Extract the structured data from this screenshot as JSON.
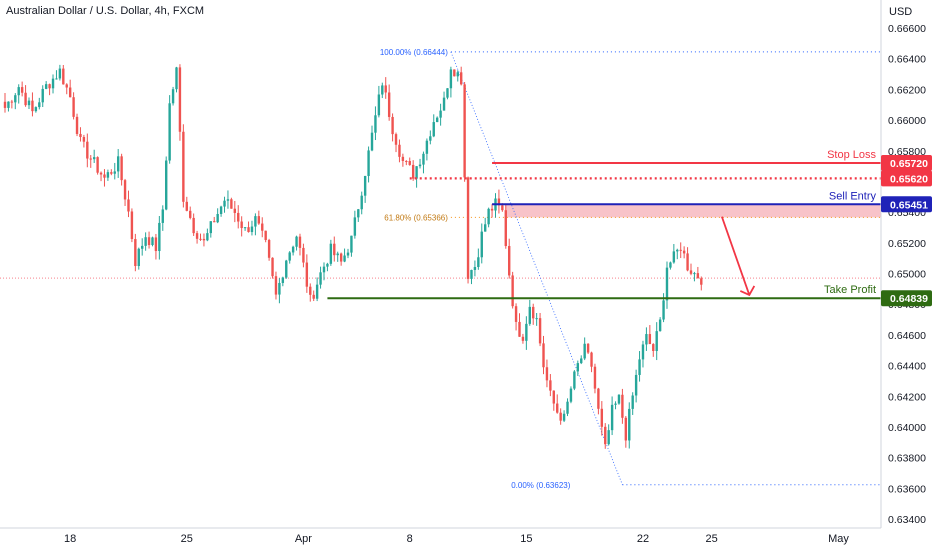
{
  "chart_data": {
    "type": "candlestick",
    "title": "Australian Dollar / U.S. Dollar, 4h, FXCM",
    "currency": "USD",
    "ylim": [
      0.634,
      0.667
    ],
    "y_ticks": [
      "0.66600",
      "0.66400",
      "0.66200",
      "0.66000",
      "0.65800",
      "0.65600",
      "0.65400",
      "0.65200",
      "0.65000",
      "0.64800",
      "0.64600",
      "0.64400",
      "0.64200",
      "0.64000",
      "0.63800",
      "0.63600",
      "0.63400"
    ],
    "x_ticks": [
      {
        "label": "18",
        "candle": 19
      },
      {
        "label": "25",
        "candle": 53
      },
      {
        "label": "Apr",
        "candle": 87
      },
      {
        "label": "8",
        "candle": 118
      },
      {
        "label": "15",
        "candle": 152
      },
      {
        "label": "22",
        "candle": 186
      },
      {
        "label": "25",
        "candle": 206
      },
      {
        "label": "May",
        "candle": 243
      }
    ],
    "current_price_line": 0.6497,
    "fibonacci": {
      "high": {
        "label": "100.00% (0.66444)",
        "value": 0.66444,
        "candle": 130
      },
      "mid": {
        "label": "61.80% (0.65366)",
        "value": 0.65366
      },
      "low": {
        "label": "0.00% (0.63623)",
        "value": 0.63623,
        "candle": 180
      },
      "end_candle": 250
    },
    "levels": [
      {
        "name": "Stop Loss",
        "value": 0.6572,
        "tag": "0.65720",
        "color": "#f23645",
        "style": "solid",
        "from_candle": 142
      },
      {
        "name": "",
        "value": 0.6562,
        "tag": "0.65620",
        "color": "#f23645",
        "style": "dotted",
        "from_candle": 118
      },
      {
        "name": "Sell Entry",
        "value": 0.65451,
        "tag": "0.65451",
        "color": "#1f22b8",
        "style": "solid",
        "from_candle": 142
      },
      {
        "name": "Take Profit",
        "value": 0.64839,
        "tag": "0.64839",
        "color": "#2e6b12",
        "style": "solid",
        "from_candle": 94
      }
    ],
    "zone": {
      "from": 0.65366,
      "to": 0.65451,
      "color": "#f7b9c0",
      "from_candle": 146
    },
    "arrow": {
      "from_candle": 209,
      "from_value": 0.6537,
      "to_candle": 217,
      "to_value": 0.6486,
      "color": "#f23645"
    },
    "anchors": [
      [
        0,
        0.6608
      ],
      [
        4,
        0.6622
      ],
      [
        8,
        0.6605
      ],
      [
        12,
        0.6622
      ],
      [
        16,
        0.6632
      ],
      [
        19,
        0.6615
      ],
      [
        22,
        0.6585
      ],
      [
        25,
        0.6575
      ],
      [
        29,
        0.6562
      ],
      [
        33,
        0.6572
      ],
      [
        36,
        0.654
      ],
      [
        38,
        0.6508
      ],
      [
        41,
        0.6525
      ],
      [
        44,
        0.6517
      ],
      [
        46,
        0.6542
      ],
      [
        48,
        0.661
      ],
      [
        50,
        0.6632
      ],
      [
        52,
        0.655
      ],
      [
        55,
        0.653
      ],
      [
        58,
        0.652
      ],
      [
        61,
        0.6535
      ],
      [
        64,
        0.6548
      ],
      [
        67,
        0.654
      ],
      [
        70,
        0.6528
      ],
      [
        73,
        0.6535
      ],
      [
        76,
        0.6518
      ],
      [
        79,
        0.6485
      ],
      [
        82,
        0.651
      ],
      [
        85,
        0.6525
      ],
      [
        87,
        0.6505
      ],
      [
        89,
        0.6482
      ],
      [
        92,
        0.65
      ],
      [
        95,
        0.6515
      ],
      [
        98,
        0.6507
      ],
      [
        101,
        0.6522
      ],
      [
        104,
        0.6555
      ],
      [
        107,
        0.659
      ],
      [
        110,
        0.6625
      ],
      [
        113,
        0.6595
      ],
      [
        116,
        0.6573
      ],
      [
        119,
        0.6565
      ],
      [
        122,
        0.658
      ],
      [
        125,
        0.66
      ],
      [
        128,
        0.6612
      ],
      [
        130,
        0.6636
      ],
      [
        133,
        0.6627
      ],
      [
        135,
        0.65
      ],
      [
        137,
        0.6505
      ],
      [
        139,
        0.6525
      ],
      [
        141,
        0.654
      ],
      [
        143,
        0.6545
      ],
      [
        145,
        0.654
      ],
      [
        147,
        0.65
      ],
      [
        149,
        0.6465
      ],
      [
        151,
        0.646
      ],
      [
        153,
        0.648
      ],
      [
        155,
        0.647
      ],
      [
        157,
        0.644
      ],
      [
        159,
        0.642
      ],
      [
        161,
        0.641
      ],
      [
        163,
        0.6405
      ],
      [
        165,
        0.6425
      ],
      [
        167,
        0.644
      ],
      [
        169,
        0.645
      ],
      [
        171,
        0.644
      ],
      [
        173,
        0.641
      ],
      [
        175,
        0.6385
      ],
      [
        177,
        0.641
      ],
      [
        179,
        0.6418
      ],
      [
        181,
        0.6395
      ],
      [
        183,
        0.642
      ],
      [
        185,
        0.6445
      ],
      [
        187,
        0.6458
      ],
      [
        189,
        0.645
      ],
      [
        191,
        0.6468
      ],
      [
        193,
        0.6505
      ],
      [
        195,
        0.651
      ],
      [
        197,
        0.6518
      ],
      [
        199,
        0.6505
      ],
      [
        201,
        0.65
      ],
      [
        203,
        0.6497
      ]
    ]
  }
}
